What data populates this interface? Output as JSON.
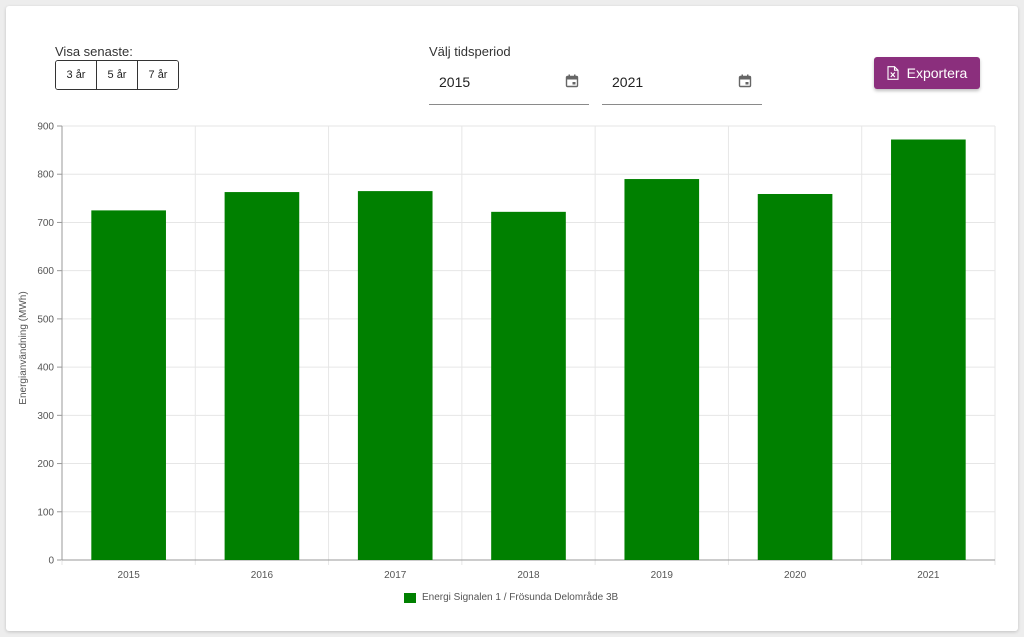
{
  "controls": {
    "range_label": "Visa senaste:",
    "range_buttons": [
      "3 år",
      "5 år",
      "7 år"
    ],
    "period_label": "Välj tidsperiod",
    "from_year": "2015",
    "to_year": "2021",
    "calendar_icon": "calendar-icon",
    "export_label": "Exportera",
    "export_icon": "excel-file-icon",
    "export_color": "#8b2f7d"
  },
  "chart_data": {
    "type": "bar",
    "categories": [
      "2015",
      "2016",
      "2017",
      "2018",
      "2019",
      "2020",
      "2021"
    ],
    "series": [
      {
        "name": "Energi Signalen 1 / Frösunda Delområde 3B",
        "color": "#008000",
        "values": [
          725,
          763,
          765,
          722,
          790,
          759,
          872
        ]
      }
    ],
    "ylabel": "Energianvändning (MWh)",
    "xlabel": "",
    "ylim": [
      0,
      900
    ],
    "yticks": [
      0,
      100,
      200,
      300,
      400,
      500,
      600,
      700,
      800,
      900
    ],
    "grid": true,
    "legend_position": "bottom"
  }
}
